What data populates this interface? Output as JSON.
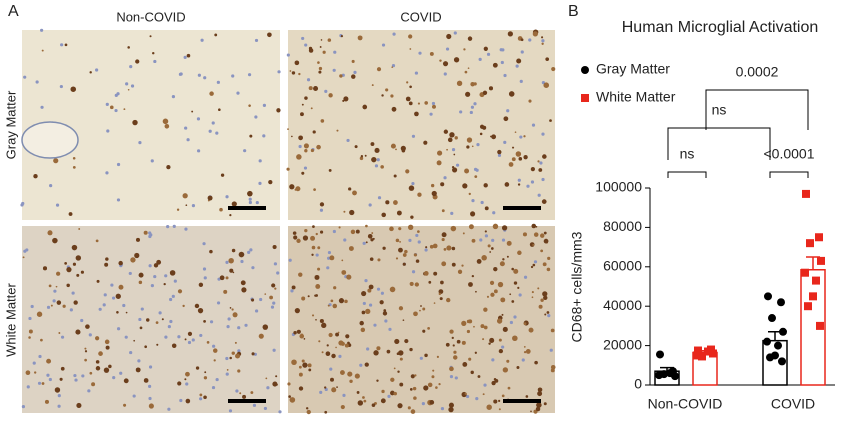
{
  "panel_a": {
    "label": "A",
    "columns": [
      "Non-COVID",
      "COVID"
    ],
    "rows": [
      "Gray Matter",
      "White Matter"
    ]
  },
  "panel_b": {
    "label": "B"
  },
  "chart_data": {
    "type": "bar",
    "title": "Human Microglial Activation",
    "categories": [
      "Non-COVID",
      "COVID"
    ],
    "y_label": "CD68+ cells/mm3",
    "ylim": [
      0,
      100000
    ],
    "yticks": [
      0,
      20000,
      40000,
      60000,
      80000,
      100000
    ],
    "series": [
      {
        "name": "Gray Matter",
        "color": "#000000",
        "marker": "circle",
        "values": [
          7000,
          22500
        ],
        "errors": [
          1800,
          4500
        ],
        "points": [
          [
            15500,
            7000,
            5500,
            4500,
            5000,
            6000
          ],
          [
            45000,
            42000,
            34000,
            27000,
            22000,
            20000,
            15000,
            14000,
            12000
          ]
        ]
      },
      {
        "name": "White Matter",
        "color": "#e8271c",
        "marker": "square",
        "values": [
          16500,
          58500
        ],
        "errors": [
          900,
          6500
        ],
        "points": [
          [
            17500,
            18000,
            14500,
            16000,
            15000,
            17000
          ],
          [
            97000,
            75000,
            72000,
            63000,
            57000,
            53000,
            45000,
            40000,
            30000
          ]
        ]
      }
    ],
    "annotations": [
      "ns",
      "<0.0001",
      "ns",
      "0.0002"
    ]
  }
}
